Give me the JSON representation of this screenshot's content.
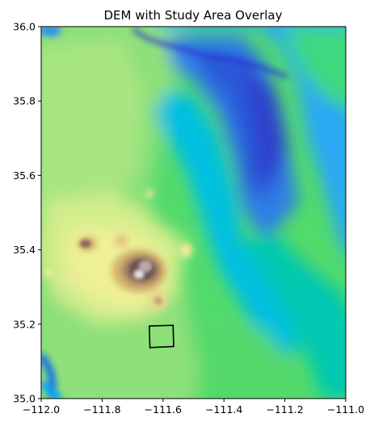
{
  "title": "DEM with Study Area Overlay",
  "colors": {
    "colormap": [
      "#2b2bd0",
      "#1f78e0",
      "#00a0ff",
      "#00c89a",
      "#3fd86a",
      "#8fe47c",
      "#d8ef90",
      "#f6f29c",
      "#d7b46e",
      "#8a6a58",
      "#5a4748",
      "#ffffff"
    ],
    "study_area_outline": "#000000",
    "axes": "#000000"
  },
  "map": {
    "xaxis": {
      "range": [
        -112.0,
        -111.0
      ],
      "ticks": [
        -112.0,
        -111.8,
        -111.6,
        -111.4,
        -111.2,
        -111.0
      ],
      "tick_labels": [
        "−112.0",
        "−111.8",
        "−111.6",
        "−111.4",
        "−111.2",
        "−111.0"
      ]
    },
    "yaxis": {
      "range": [
        35.0,
        36.0
      ],
      "ticks": [
        35.0,
        35.2,
        35.4,
        35.6,
        35.8,
        36.0
      ],
      "tick_labels": [
        "35.0",
        "35.2",
        "35.4",
        "35.6",
        "35.8",
        "36.0"
      ]
    },
    "study_area": {
      "polygon": [
        [
          -111.645,
          35.195
        ],
        [
          -111.567,
          35.197
        ],
        [
          -111.565,
          35.14
        ],
        [
          -111.643,
          35.137
        ]
      ]
    }
  }
}
